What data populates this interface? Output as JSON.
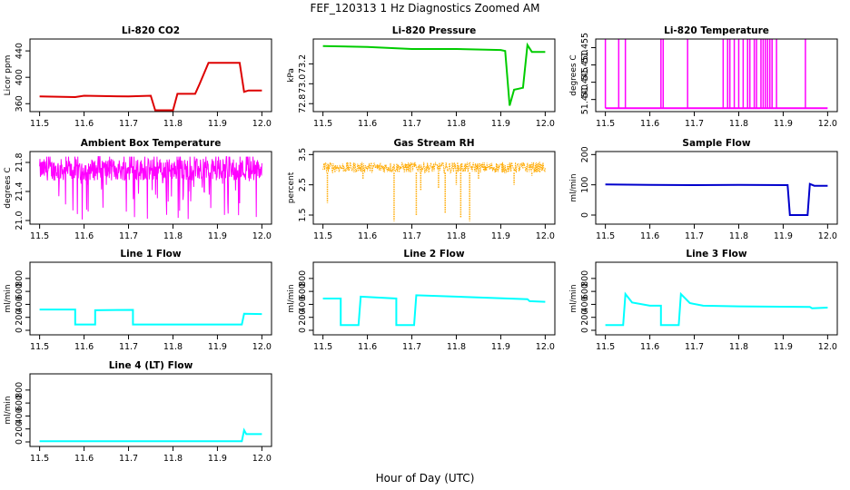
{
  "figure": {
    "title": "FEF_120313  1 Hz Diagnostics Zoomed AM",
    "xlabel": "Hour of Day (UTC)"
  },
  "chart_data": [
    {
      "type": "line",
      "title": "Li-820 CO2",
      "ylabel": "Licor ppm",
      "color": "#dd0000",
      "xlim": [
        11.5,
        12.0
      ],
      "ylim": [
        348,
        458
      ],
      "xticks": [
        11.5,
        11.6,
        11.7,
        11.8,
        11.9,
        12.0
      ],
      "yticks": [
        360,
        400,
        440
      ],
      "x": [
        11.5,
        11.58,
        11.6,
        11.7,
        11.75,
        11.76,
        11.8,
        11.81,
        11.85,
        11.86,
        11.88,
        11.95,
        11.96,
        11.97,
        12.0
      ],
      "y": [
        371,
        370,
        372,
        371,
        372,
        350,
        350,
        375,
        375,
        390,
        422,
        422,
        378,
        380,
        380
      ]
    },
    {
      "type": "line",
      "title": "Li-820 Pressure",
      "ylabel": "kPa",
      "color": "#00cc00",
      "xlim": [
        11.5,
        12.0
      ],
      "ylim": [
        72.72,
        73.45
      ],
      "xticks": [
        11.5,
        11.6,
        11.7,
        11.8,
        11.9,
        12.0
      ],
      "yticks": [
        72.8,
        73.0,
        73.2
      ],
      "x": [
        11.5,
        11.6,
        11.7,
        11.8,
        11.9,
        11.91,
        11.92,
        11.93,
        11.94,
        11.95,
        11.96,
        11.97,
        12.0
      ],
      "y": [
        73.38,
        73.37,
        73.35,
        73.35,
        73.34,
        73.33,
        72.78,
        72.94,
        72.95,
        72.96,
        73.39,
        73.32,
        73.32
      ]
    },
    {
      "type": "line",
      "title": "Li-820 Temperature",
      "ylabel": "degrees C",
      "color": "#ff00ff",
      "xlim": [
        11.5,
        12.0
      ],
      "ylim": [
        51.4365,
        51.4575
      ],
      "xticks": [
        11.5,
        11.6,
        11.7,
        11.8,
        11.9,
        12.0
      ],
      "yticks": [
        51.44,
        51.445,
        51.45,
        51.455
      ],
      "baseline": 51.4375,
      "spike_value": 51.4575,
      "spikes_x": [
        11.5,
        11.53,
        11.545,
        11.625,
        11.63,
        11.685,
        11.765,
        11.775,
        11.78,
        11.79,
        11.8,
        11.81,
        11.82,
        11.825,
        11.835,
        11.84,
        11.85,
        11.855,
        11.86,
        11.865,
        11.87,
        11.875,
        11.885,
        11.95
      ]
    },
    {
      "type": "line",
      "title": "Ambient Box Temperature",
      "ylabel": "degrees C",
      "color": "#ff00ff",
      "xlim": [
        11.5,
        12.0
      ],
      "ylim": [
        20.95,
        21.95
      ],
      "xticks": [
        11.5,
        11.6,
        11.7,
        11.8,
        11.9,
        12.0
      ],
      "yticks": [
        21.0,
        21.4,
        21.8
      ],
      "band": [
        21.55,
        21.85
      ],
      "noise_min": 21.0,
      "noise_max": 21.88
    },
    {
      "type": "line",
      "title": "Gas Stream RH",
      "ylabel": "percent",
      "color": "#ffaa00",
      "xlim": [
        11.5,
        12.0
      ],
      "ylim": [
        1.2,
        3.6
      ],
      "xticks": [
        11.5,
        11.6,
        11.7,
        11.8,
        11.9,
        12.0
      ],
      "yticks": [
        1.5,
        2.5,
        3.5
      ],
      "band": [
        2.9,
        3.25
      ],
      "dips": [
        [
          11.51,
          1.9
        ],
        [
          11.59,
          2.7
        ],
        [
          11.66,
          1.3
        ],
        [
          11.71,
          1.5
        ],
        [
          11.72,
          2.3
        ],
        [
          11.76,
          2.4
        ],
        [
          11.775,
          1.55
        ],
        [
          11.8,
          2.5
        ],
        [
          11.81,
          1.4
        ],
        [
          11.83,
          1.3
        ],
        [
          11.85,
          2.7
        ],
        [
          11.93,
          2.5
        ],
        [
          11.97,
          2.8
        ]
      ]
    },
    {
      "type": "line",
      "title": "Sample Flow",
      "ylabel": "ml/min",
      "color": "#0000cc",
      "xlim": [
        11.5,
        12.0
      ],
      "ylim": [
        -30,
        210
      ],
      "xticks": [
        11.5,
        11.6,
        11.7,
        11.8,
        11.9,
        12.0
      ],
      "yticks": [
        0,
        100,
        200
      ],
      "x": [
        11.5,
        11.6,
        11.7,
        11.8,
        11.91,
        11.915,
        11.955,
        11.96,
        11.97,
        12.0
      ],
      "y": [
        101,
        100,
        99,
        100,
        99,
        0,
        0,
        103,
        97,
        97
      ]
    },
    {
      "type": "line",
      "title": "Line 1 Flow",
      "ylabel": "ml/min",
      "color": "#00ffff",
      "xlim": [
        11.5,
        12.0
      ],
      "ylim": [
        -70,
        1050
      ],
      "xticks": [
        11.5,
        11.6,
        11.7,
        11.8,
        11.9,
        12.0
      ],
      "yticks": [
        0,
        200,
        400,
        600,
        800
      ],
      "x": [
        11.5,
        11.58,
        11.58,
        11.625,
        11.625,
        11.71,
        11.71,
        11.955,
        11.96,
        12.0
      ],
      "y": [
        320,
        320,
        90,
        90,
        310,
        315,
        90,
        90,
        255,
        250
      ]
    },
    {
      "type": "line",
      "title": "Line 2 Flow",
      "ylabel": "ml/min",
      "color": "#00ffff",
      "xlim": [
        11.5,
        12.0
      ],
      "ylim": [
        -70,
        1050
      ],
      "xticks": [
        11.5,
        11.6,
        11.7,
        11.8,
        11.9,
        12.0
      ],
      "yticks": [
        0,
        200,
        400,
        600,
        800
      ],
      "x": [
        11.5,
        11.54,
        11.54,
        11.58,
        11.585,
        11.665,
        11.665,
        11.705,
        11.71,
        11.96,
        11.965,
        12.0
      ],
      "y": [
        490,
        490,
        80,
        80,
        520,
        490,
        80,
        80,
        540,
        480,
        450,
        440
      ]
    },
    {
      "type": "line",
      "title": "Line 3 Flow",
      "ylabel": "ml/min",
      "color": "#00ffff",
      "xlim": [
        11.5,
        12.0
      ],
      "ylim": [
        -70,
        1050
      ],
      "xticks": [
        11.5,
        11.6,
        11.7,
        11.8,
        11.9,
        12.0
      ],
      "yticks": [
        0,
        200,
        400,
        600,
        800
      ],
      "x": [
        11.5,
        11.54,
        11.545,
        11.56,
        11.6,
        11.625,
        11.625,
        11.665,
        11.67,
        11.69,
        11.72,
        11.8,
        11.96,
        11.965,
        12.0
      ],
      "y": [
        80,
        80,
        560,
        430,
        380,
        380,
        80,
        80,
        560,
        420,
        380,
        370,
        360,
        340,
        350
      ]
    },
    {
      "type": "line",
      "title": "Line 4 (LT) Flow",
      "ylabel": "ml/min",
      "color": "#00ffff",
      "xlim": [
        11.5,
        12.0
      ],
      "ylim": [
        -70,
        1050
      ],
      "xticks": [
        11.5,
        11.6,
        11.7,
        11.8,
        11.9,
        12.0
      ],
      "yticks": [
        0,
        200,
        400,
        600,
        800
      ],
      "x": [
        11.5,
        11.955,
        11.96,
        11.965,
        12.0
      ],
      "y": [
        10,
        10,
        180,
        120,
        120
      ]
    }
  ]
}
